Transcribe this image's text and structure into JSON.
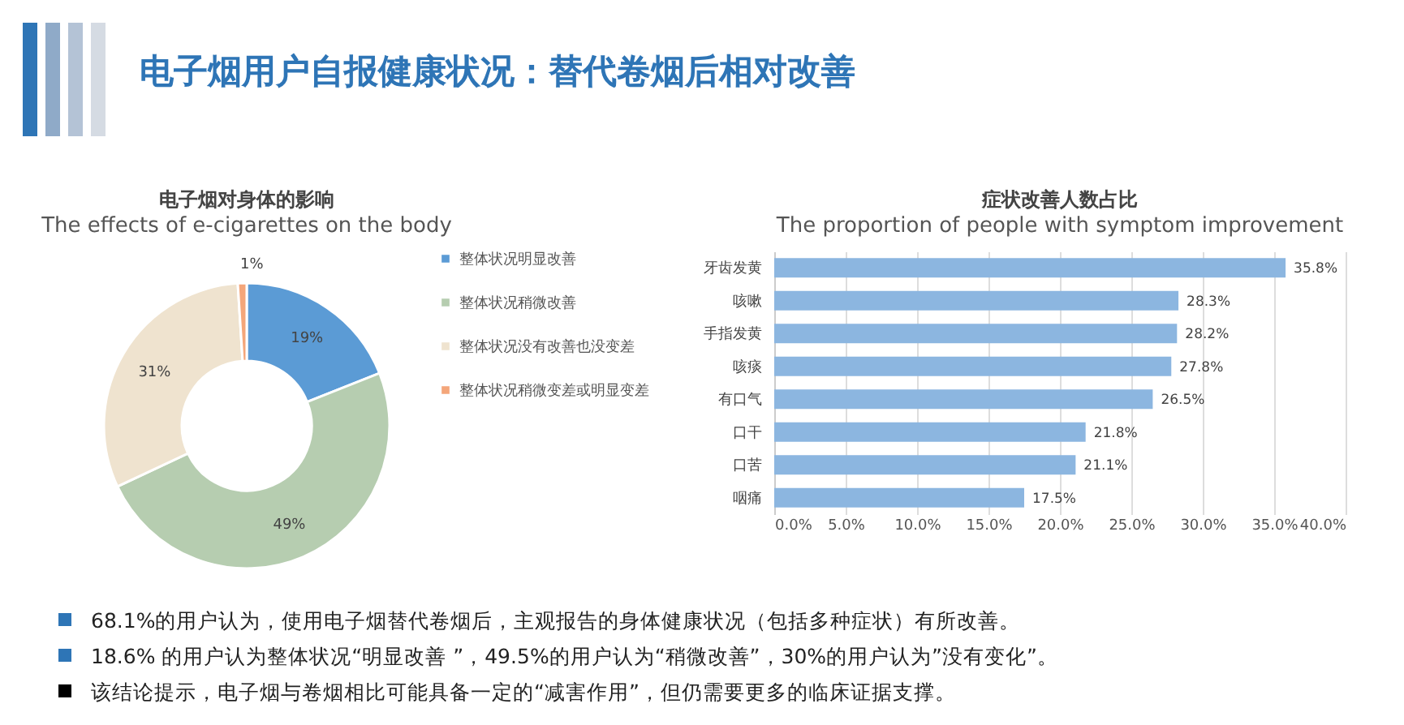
{
  "chart_data": [
    {
      "type": "other",
      "title": "电子烟用户自报健康状况：替代卷烟后相对改善"
    },
    {
      "type": "donut",
      "title": "电子烟对身体的影响",
      "subtitle": "The effects of e-cigarettes on the body",
      "categories": [
        "整体状况明显改善",
        "整体状况稍微改善",
        "整体状况没有改善也没变差",
        "整体状况稍微变差或明显变差"
      ],
      "values": [
        19,
        49,
        31,
        1
      ],
      "value_labels": [
        "19%",
        "49%",
        "31%",
        "1%"
      ],
      "colors": [
        "#5b9bd5",
        "#b6cdb0",
        "#efe3cf",
        "#f4a67a"
      ],
      "legend": "right"
    },
    {
      "type": "bar",
      "orientation": "horizontal",
      "title": "症状改善人数占比",
      "subtitle": "The proportion of people with symptom improvement",
      "categories": [
        "牙齿发黄",
        "咳嗽",
        "手指发黄",
        "咳痰",
        "有口气",
        "口干",
        "口苦",
        "咽痛"
      ],
      "values": [
        35.8,
        28.3,
        28.2,
        27.8,
        26.5,
        21.8,
        21.1,
        17.5
      ],
      "value_labels": [
        "35.8%",
        "28.3%",
        "28.2%",
        "27.8%",
        "26.5%",
        "21.8%",
        "21.1%",
        "17.5%"
      ],
      "color": "#8cb6e0",
      "xlim": [
        0,
        40
      ],
      "xticks": [
        {
          "value": 0,
          "label": "0.0%"
        },
        {
          "value": 5,
          "label": "5.0%"
        },
        {
          "value": 10,
          "label": "10.0%"
        },
        {
          "value": 15,
          "label": "15.0%"
        },
        {
          "value": 20,
          "label": "20.0%"
        },
        {
          "value": 25,
          "label": "25.0%"
        },
        {
          "value": 30,
          "label": "30.0%"
        },
        {
          "value": 35,
          "label": "35.0%"
        },
        {
          "value": 40,
          "label": "40.0%"
        }
      ],
      "grid": "x"
    },
    {
      "type": "other",
      "annotations": [
        "68.1%的用户认为，使用电子烟替代卷烟后，主观报告的身体健康状况（包括多种症状）有所改善。",
        "18.6% 的用户认为整体状况“明显改善 ”，49.5%的用户认为“稍微改善”，30%的用户认为”没有变化”。",
        "该结论提示，电子烟与卷烟相比可能具备一定的“减害作用”，但仍需要更多的临床证据支撑。"
      ]
    }
  ]
}
